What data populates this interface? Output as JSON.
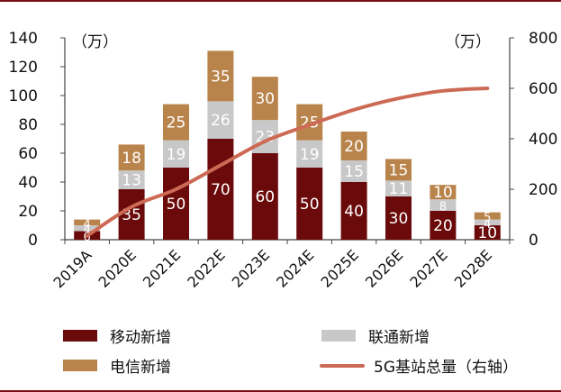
{
  "chart_data": {
    "type": "bar",
    "stacked": true,
    "categories": [
      "2019A",
      "2020E",
      "2021E",
      "2022E",
      "2023E",
      "2024E",
      "2025E",
      "2026E",
      "2027E",
      "2028E"
    ],
    "series": [
      {
        "name": "移动新增",
        "axis": "left",
        "color": "#6b0a0a",
        "values": [
          6,
          35,
          50,
          70,
          60,
          50,
          40,
          30,
          20,
          10
        ]
      },
      {
        "name": "联通新增",
        "axis": "left",
        "color": "#c8c8c8",
        "values": [
          4,
          13,
          19,
          26,
          23,
          19,
          15,
          11,
          8,
          4
        ]
      },
      {
        "name": "电信新增",
        "axis": "left",
        "color": "#b9844b",
        "values": [
          4,
          18,
          25,
          35,
          30,
          25,
          20,
          15,
          10,
          5
        ]
      },
      {
        "name": "5G基站总量（右轴）",
        "axis": "right",
        "type": "line",
        "color": "#cd6a55",
        "values": [
          15,
          130,
          200,
          295,
          390,
          455,
          515,
          560,
          590,
          600
        ]
      }
    ],
    "data_labels": [
      [
        "6",
        "35",
        "50",
        "70",
        "60",
        "50",
        "40",
        "30",
        "20",
        "10"
      ],
      [
        "4",
        "13",
        "19",
        "26",
        "23",
        "19",
        "15",
        "11",
        "8",
        "4"
      ],
      [
        "4",
        "18",
        "25",
        "35",
        "30",
        "25",
        "20",
        "15",
        "10",
        "5"
      ]
    ],
    "y_left": {
      "unit": "（万）",
      "ticks": [
        "0",
        "20",
        "40",
        "60",
        "80",
        "100",
        "120",
        "140"
      ],
      "range": [
        0,
        140
      ]
    },
    "y_right": {
      "unit": "（万）",
      "ticks": [
        "0",
        "200",
        "400",
        "600",
        "800"
      ],
      "range": [
        0,
        800
      ]
    },
    "legend": {
      "placement": "bottom"
    }
  },
  "legend": {
    "mobile": "移动新增",
    "unicom": "联通新增",
    "telecom": "电信新增",
    "total": "5G基站总量（右轴）"
  }
}
